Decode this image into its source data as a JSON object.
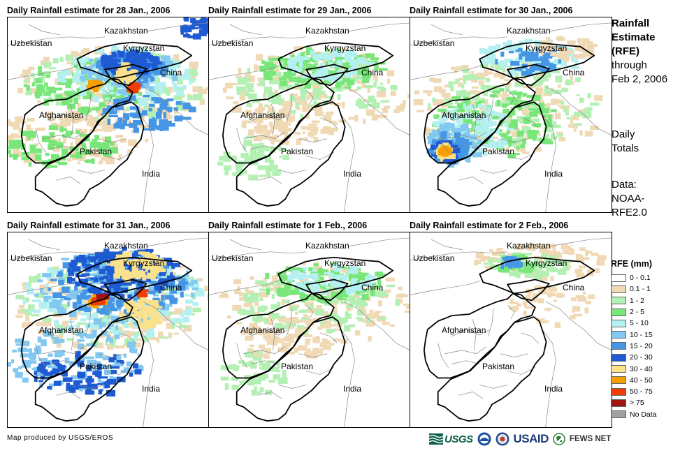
{
  "panels": [
    {
      "title": "Daily Rainfall estimate for 28 Jan., 2006",
      "intensity": "heavy-north"
    },
    {
      "title": "Daily Rainfall estimate for 29 Jan., 2006",
      "intensity": "light"
    },
    {
      "title": "Daily Rainfall estimate for 30 Jan., 2006",
      "intensity": "southwest"
    },
    {
      "title": "Daily Rainfall estimate for 31 Jan., 2006",
      "intensity": "very-heavy"
    },
    {
      "title": "Daily Rainfall estimate for 1 Feb., 2006",
      "intensity": "light"
    },
    {
      "title": "Daily Rainfall estimate for 2 Feb., 2006",
      "intensity": "minimal"
    }
  ],
  "map_labels": {
    "kazakhstan": "Kazakhstan",
    "uzbekistan": "Uzbekistan",
    "kyrgyzstan": "Kyrgyzstan",
    "china": "China",
    "afghanistan": "Afghanistan",
    "pakistan": "Pakistan",
    "india": "India"
  },
  "side": {
    "title_bold_1": "Rainfall",
    "title_bold_2": "Estimate",
    "title_bold_3": "(RFE)",
    "title_line_4": "through",
    "title_line_5": "Feb 2, 2006",
    "daily_1": "Daily",
    "daily_2": "Totals",
    "data_1": "Data:",
    "data_2": "NOAA-",
    "data_3": "RFE2.0"
  },
  "legend": {
    "title": "RFE (mm)",
    "items": [
      {
        "label": "0 - 0.1",
        "color": "#ffffff"
      },
      {
        "label": "0.1 - 1",
        "color": "#f0d9b5"
      },
      {
        "label": "1 - 2",
        "color": "#b4f0b4"
      },
      {
        "label": "2 - 5",
        "color": "#78e678"
      },
      {
        "label": "5 - 10",
        "color": "#b4f0f0"
      },
      {
        "label": "10 - 15",
        "color": "#82c8f0"
      },
      {
        "label": "15 - 20",
        "color": "#4696e6"
      },
      {
        "label": "20 - 30",
        "color": "#1e5ad2"
      },
      {
        "label": "30 - 40",
        "color": "#fae18c"
      },
      {
        "label": "40 - 50",
        "color": "#f5a000"
      },
      {
        "label": "50 - 75",
        "color": "#f03c00"
      },
      {
        "label": "> 75",
        "color": "#a01414"
      },
      {
        "label": "No Data",
        "color": "#a0a0a0"
      }
    ]
  },
  "credit": "Map produced by USGS/EROS",
  "logos": {
    "usgs": "USGS",
    "usaid": "USAID",
    "fews": "FEWS NET"
  }
}
